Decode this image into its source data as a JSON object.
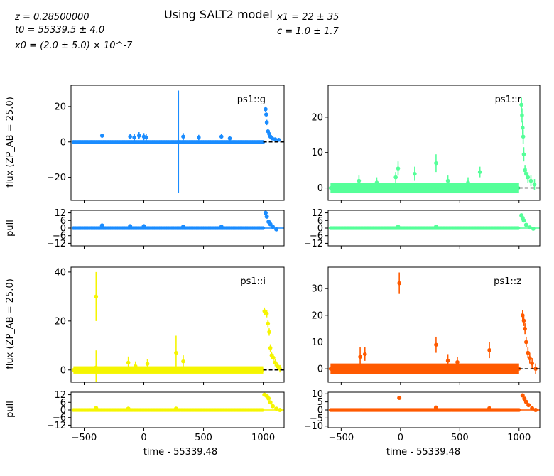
{
  "header": {
    "title": "Using SALT2 model",
    "left_params": [
      "z = 0.28500000",
      "t0 = 55339.5 ± 4.0",
      "x0 = (2.0 ± 5.0) × 10^-7"
    ],
    "right_params": [
      "x1 = 22 ± 35",
      "c = 1.0 ± 1.7"
    ]
  },
  "labels": {
    "flux_ylabel": "flux (ZP_AB = 25.0)",
    "pull_ylabel": "pull",
    "xlabel": "time - 55339.48"
  },
  "chart_data": [
    {
      "type": "scatter",
      "band": "ps1::g",
      "color": "#1a8cff",
      "xlim": [
        -610,
        1175
      ],
      "flux_ylim": [
        -33,
        32
      ],
      "flux_yticks": [
        -20,
        0,
        20
      ],
      "pull_ylim": [
        -14,
        14
      ],
      "pull_yticks": [
        -12,
        -6,
        0,
        6,
        12
      ],
      "baseline": {
        "x": [
          -590,
          1000
        ],
        "y": 0,
        "err": 0.5,
        "spacing": 10
      },
      "points": [
        {
          "x": -350,
          "y": 3.5,
          "err": 1.2
        },
        {
          "x": -115,
          "y": 3.0,
          "err": 1.5
        },
        {
          "x": -80,
          "y": 2.5,
          "err": 2.0
        },
        {
          "x": -40,
          "y": 3.5,
          "err": 2.0
        },
        {
          "x": 0,
          "y": 3.0,
          "err": 2.0
        },
        {
          "x": 20,
          "y": 2.5,
          "err": 2.0
        },
        {
          "x": 290,
          "y": 0,
          "err": 29
        },
        {
          "x": 330,
          "y": 3.0,
          "err": 2.0
        },
        {
          "x": 460,
          "y": 2.5,
          "err": 1.5
        },
        {
          "x": 650,
          "y": 3.0,
          "err": 1.5
        },
        {
          "x": 720,
          "y": 2.0,
          "err": 1.5
        },
        {
          "x": 1020,
          "y": 18.5,
          "err": 1.5
        },
        {
          "x": 1025,
          "y": 15.5,
          "err": 1.5
        },
        {
          "x": 1030,
          "y": 11.0,
          "err": 1.5
        },
        {
          "x": 1040,
          "y": 6.0,
          "err": 1.5
        },
        {
          "x": 1050,
          "y": 4.5,
          "err": 1.2
        },
        {
          "x": 1060,
          "y": 3.0,
          "err": 1.0
        },
        {
          "x": 1075,
          "y": 2.0,
          "err": 1.0
        },
        {
          "x": 1100,
          "y": 1.5,
          "err": 1.0
        },
        {
          "x": 1130,
          "y": 1.2,
          "err": 1.0
        }
      ],
      "pull_points": [
        {
          "x": -350,
          "y": 2.0
        },
        {
          "x": -115,
          "y": 1.5
        },
        {
          "x": 0,
          "y": 1.5
        },
        {
          "x": 330,
          "y": 1.0
        },
        {
          "x": 650,
          "y": 1.0
        },
        {
          "x": 1020,
          "y": 12.0
        },
        {
          "x": 1030,
          "y": 9.0
        },
        {
          "x": 1045,
          "y": 5.0
        },
        {
          "x": 1060,
          "y": 3.0
        },
        {
          "x": 1080,
          "y": 1.0
        },
        {
          "x": 1110,
          "y": -1.0
        }
      ],
      "model_line": true
    },
    {
      "type": "scatter",
      "band": "ps1::r",
      "color": "#55ff99",
      "xlim": [
        -610,
        1175
      ],
      "flux_ylim": [
        -3.5,
        29
      ],
      "flux_yticks": [
        0,
        10,
        20
      ],
      "pull_ylim": [
        -14,
        14
      ],
      "pull_yticks": [
        -12,
        -6,
        0,
        6,
        12
      ],
      "baseline": {
        "x": [
          -590,
          1000
        ],
        "y": 0,
        "err": 1.5,
        "spacing": 8
      },
      "points": [
        {
          "x": -350,
          "y": 2.0,
          "err": 1.5
        },
        {
          "x": -200,
          "y": 1.5,
          "err": 1.5
        },
        {
          "x": -40,
          "y": 3.0,
          "err": 1.5
        },
        {
          "x": -20,
          "y": 5.5,
          "err": 2.0
        },
        {
          "x": 120,
          "y": 4.0,
          "err": 2.0
        },
        {
          "x": 300,
          "y": 7.0,
          "err": 2.5
        },
        {
          "x": 400,
          "y": 2.0,
          "err": 1.5
        },
        {
          "x": 570,
          "y": 1.5,
          "err": 1.5
        },
        {
          "x": 670,
          "y": 4.5,
          "err": 1.5
        },
        {
          "x": 1020,
          "y": 23.5,
          "err": 2.0
        },
        {
          "x": 1025,
          "y": 20.5,
          "err": 2.0
        },
        {
          "x": 1030,
          "y": 17.0,
          "err": 2.0
        },
        {
          "x": 1035,
          "y": 14.5,
          "err": 2.0
        },
        {
          "x": 1040,
          "y": 9.5,
          "err": 2.0
        },
        {
          "x": 1050,
          "y": 5.0,
          "err": 1.5
        },
        {
          "x": 1060,
          "y": 4.0,
          "err": 1.5
        },
        {
          "x": 1075,
          "y": 3.0,
          "err": 1.5
        },
        {
          "x": 1100,
          "y": 2.0,
          "err": 1.5
        },
        {
          "x": 1130,
          "y": 1.0,
          "err": 1.5
        }
      ],
      "pull_points": [
        {
          "x": -20,
          "y": 1.0
        },
        {
          "x": 300,
          "y": 1.0
        },
        {
          "x": 1020,
          "y": 10.0
        },
        {
          "x": 1030,
          "y": 8.0
        },
        {
          "x": 1040,
          "y": 6.0
        },
        {
          "x": 1060,
          "y": 2.5
        },
        {
          "x": 1090,
          "y": 0.5
        },
        {
          "x": 1120,
          "y": -0.5
        }
      ],
      "model_line": true
    },
    {
      "type": "scatter",
      "band": "ps1::i",
      "color": "#f5f500",
      "xlim": [
        -610,
        1175
      ],
      "flux_ylim": [
        -5,
        42
      ],
      "flux_yticks": [
        0,
        20,
        40
      ],
      "pull_ylim": [
        -14,
        14
      ],
      "pull_yticks": [
        -12,
        -6,
        0,
        6,
        12
      ],
      "baseline": {
        "x": [
          -590,
          1000
        ],
        "y": 0,
        "err": 1.5,
        "spacing": 8
      },
      "points": [
        {
          "x": -400,
          "y": 30,
          "err": 10
        },
        {
          "x": -400,
          "y": 1.0,
          "err": 7
        },
        {
          "x": -130,
          "y": 3.0,
          "err": 2.5
        },
        {
          "x": -70,
          "y": 1.5,
          "err": 2.0
        },
        {
          "x": 30,
          "y": 2.5,
          "err": 2.0
        },
        {
          "x": 270,
          "y": 7.0,
          "err": 7
        },
        {
          "x": 330,
          "y": 3.5,
          "err": 2.5
        },
        {
          "x": 1010,
          "y": 24.0,
          "err": 1.5
        },
        {
          "x": 1030,
          "y": 23.0,
          "err": 1.5
        },
        {
          "x": 1040,
          "y": 19.0,
          "err": 1.5
        },
        {
          "x": 1050,
          "y": 15.5,
          "err": 1.5
        },
        {
          "x": 1060,
          "y": 9.0,
          "err": 1.5
        },
        {
          "x": 1070,
          "y": 6.0,
          "err": 1.5
        },
        {
          "x": 1085,
          "y": 5.0,
          "err": 1.5
        },
        {
          "x": 1100,
          "y": 3.0,
          "err": 1.5
        },
        {
          "x": 1120,
          "y": 1.5,
          "err": 1.5
        },
        {
          "x": 1140,
          "y": 0.5,
          "err": 1.5
        }
      ],
      "pull_points": [
        {
          "x": -400,
          "y": 1.5
        },
        {
          "x": -130,
          "y": 1.0
        },
        {
          "x": 270,
          "y": 1.0
        },
        {
          "x": 1010,
          "y": 12.0
        },
        {
          "x": 1030,
          "y": 11.0
        },
        {
          "x": 1045,
          "y": 9.0
        },
        {
          "x": 1060,
          "y": 6.0
        },
        {
          "x": 1080,
          "y": 3.0
        },
        {
          "x": 1110,
          "y": 1.0
        },
        {
          "x": 1140,
          "y": 0
        }
      ],
      "model_line": true
    },
    {
      "type": "scatter",
      "band": "ps1::z",
      "color": "#ff5a00",
      "xlim": [
        -610,
        1175
      ],
      "flux_ylim": [
        -5,
        38
      ],
      "flux_yticks": [
        0,
        10,
        20,
        30
      ],
      "pull_ylim": [
        -11,
        11
      ],
      "pull_yticks": [
        -10,
        -5,
        0,
        5,
        10
      ],
      "baseline": {
        "x": [
          -590,
          1000
        ],
        "y": 0,
        "err": 2.0,
        "spacing": 6
      },
      "points": [
        {
          "x": -340,
          "y": 4.5,
          "err": 3.5
        },
        {
          "x": -300,
          "y": 5.5,
          "err": 2.5
        },
        {
          "x": -10,
          "y": 32.0,
          "err": 4.0
        },
        {
          "x": 300,
          "y": 9.0,
          "err": 3.0
        },
        {
          "x": 400,
          "y": 3.0,
          "err": 2.5
        },
        {
          "x": 480,
          "y": 2.5,
          "err": 2.0
        },
        {
          "x": 750,
          "y": 7.0,
          "err": 3.0
        },
        {
          "x": 1030,
          "y": 20.0,
          "err": 2.0
        },
        {
          "x": 1040,
          "y": 18.0,
          "err": 2.0
        },
        {
          "x": 1050,
          "y": 15.0,
          "err": 2.0
        },
        {
          "x": 1060,
          "y": 10.0,
          "err": 2.0
        },
        {
          "x": 1075,
          "y": 6.0,
          "err": 2.0
        },
        {
          "x": 1090,
          "y": 4.0,
          "err": 2.0
        },
        {
          "x": 1110,
          "y": 2.0,
          "err": 2.0
        },
        {
          "x": 1140,
          "y": 0,
          "err": 2.0
        }
      ],
      "pull_points": [
        {
          "x": -10,
          "y": 7.5
        },
        {
          "x": 300,
          "y": 1.5
        },
        {
          "x": 750,
          "y": 1.0
        },
        {
          "x": 1030,
          "y": 9.0
        },
        {
          "x": 1045,
          "y": 7.0
        },
        {
          "x": 1060,
          "y": 5.0
        },
        {
          "x": 1080,
          "y": 3.0
        },
        {
          "x": 1110,
          "y": 1.0
        },
        {
          "x": 1140,
          "y": 0
        }
      ],
      "model_line": true
    }
  ],
  "xticks": [
    -500,
    0,
    500,
    1000
  ]
}
